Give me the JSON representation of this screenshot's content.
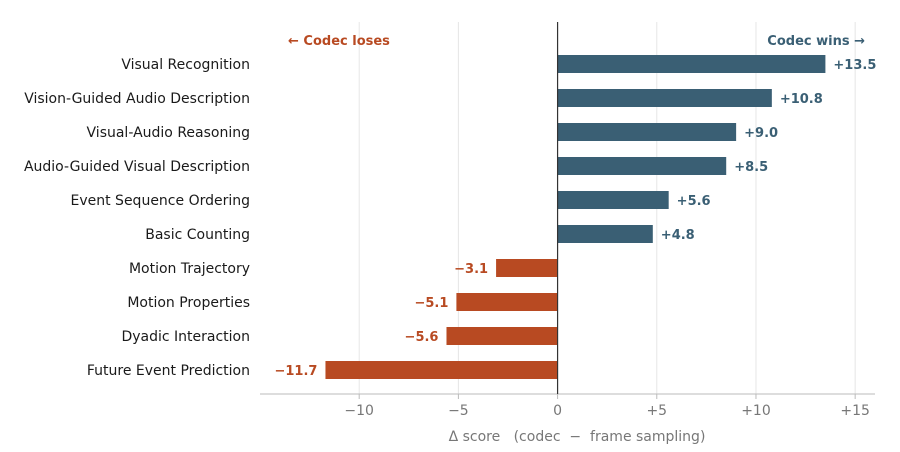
{
  "chart_data": {
    "type": "bar",
    "orientation": "horizontal",
    "categories": [
      "Visual Recognition",
      "Vision-Guided Audio Description",
      "Visual-Audio Reasoning",
      "Audio-Guided Visual Description",
      "Event Sequence Ordering",
      "Basic Counting",
      "Motion Trajectory",
      "Motion Properties",
      "Dyadic Interaction",
      "Future Event Prediction"
    ],
    "values": [
      13.5,
      10.8,
      9.0,
      8.5,
      5.6,
      4.8,
      -3.1,
      -5.1,
      -5.6,
      -11.7
    ],
    "value_labels": [
      "+13.5",
      "+10.8",
      "+9.0",
      "+8.5",
      "+5.6",
      "+4.8",
      "−3.1",
      "−5.1",
      "−5.6",
      "−11.7"
    ],
    "xlabel": "Δ score   (codec  −  frame sampling)",
    "xlim": [
      -15,
      16
    ],
    "xticks": [
      -10,
      -5,
      0,
      5,
      10,
      15
    ],
    "xtick_labels": [
      "−10",
      "−5",
      "0",
      "+5",
      "+10",
      "+15"
    ],
    "grid": "vertical",
    "annotations": {
      "left": "←  Codec loses",
      "right": "Codec wins  →"
    },
    "colors": {
      "positive": "#3a5f74",
      "negative": "#b84a22",
      "grid": "#e6e6e6",
      "zero_line": "#333333"
    }
  }
}
